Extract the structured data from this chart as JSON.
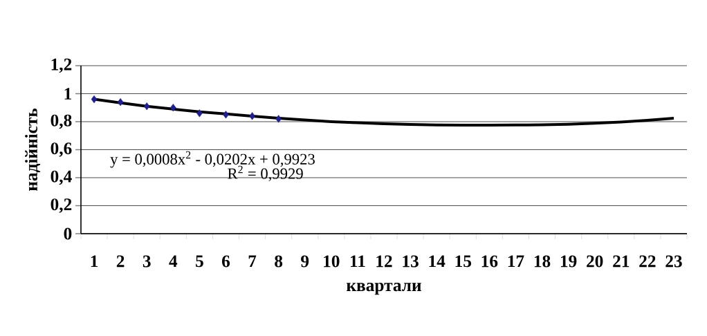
{
  "chart_data": {
    "type": "scatter",
    "xlabel": "квартали",
    "ylabel": "надійність",
    "categories": [
      "1",
      "2",
      "3",
      "4",
      "5",
      "6",
      "7",
      "8",
      "9",
      "10",
      "11",
      "12",
      "13",
      "14",
      "15",
      "16",
      "17",
      "18",
      "19",
      "20",
      "21",
      "22",
      "23"
    ],
    "series": [
      {
        "color": "#1f1f8f",
        "marker": "diamond",
        "values": [
          0.96,
          0.94,
          0.91,
          0.9,
          0.86,
          0.85,
          0.84,
          0.82,
          null,
          null,
          null,
          null,
          null,
          null,
          null,
          null,
          null,
          null,
          null,
          null,
          null,
          null,
          null
        ]
      },
      {
        "type": "line",
        "color": "#000000",
        "marker": "none",
        "line_style": "solid",
        "values": [
          0.96,
          0.935,
          0.91,
          0.89,
          0.87,
          0.855,
          0.84,
          0.825,
          0.812,
          0.8,
          0.792,
          0.785,
          0.78,
          0.776,
          0.775,
          0.775,
          0.776,
          0.778,
          0.782,
          0.789,
          0.798,
          0.81,
          0.825
        ]
      }
    ],
    "ylim": [
      0,
      1.2
    ],
    "yticks": [
      0,
      {
        "value": 0.2,
        "label": "0,2"
      },
      {
        "value": 0.4,
        "label": "0,4"
      },
      {
        "value": 0.6,
        "label": "0,6"
      },
      {
        "value": 0.8,
        "label": "0,8"
      },
      1,
      {
        "value": 1.2,
        "label": "1,2"
      }
    ],
    "grid": "y",
    "annotations": [
      "y = 0,0008x$^{2}$ - 0,0202x + 0,9923",
      "R$^{2}$ = 0,9929"
    ]
  }
}
